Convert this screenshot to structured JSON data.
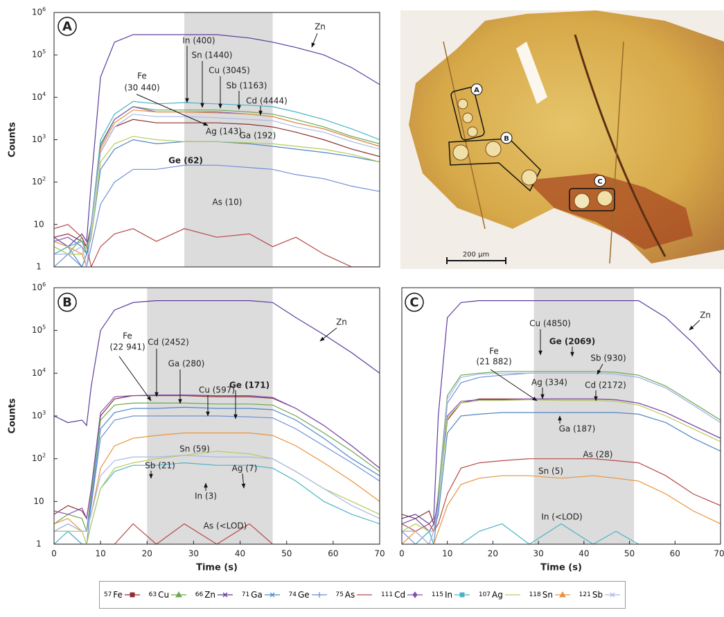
{
  "chart_data": [
    {
      "type": "line",
      "panel": "A",
      "log_y": true,
      "ylabel": "Counts",
      "x": [
        0,
        3,
        6,
        7,
        8,
        10,
        13,
        17,
        22,
        28,
        35,
        42,
        47,
        52,
        58,
        64,
        70
      ],
      "xlim": [
        0,
        70
      ],
      "ylim": [
        1,
        1000000
      ],
      "yticks": [
        1,
        10,
        {
          "value": 100,
          "label": "10",
          "sup": "2"
        },
        {
          "value": 1000,
          "label": "10",
          "sup": "3"
        },
        {
          "value": 10000,
          "label": "10",
          "sup": "4"
        },
        {
          "value": 100000,
          "label": "10",
          "sup": "5"
        },
        {
          "value": 1000000,
          "label": "10",
          "sup": "6"
        }
      ],
      "shade": [
        28,
        47
      ],
      "annotations": [
        {
          "text": "Zn"
        },
        {
          "text": "In (400)"
        },
        {
          "text": "Sn (1440)"
        },
        {
          "text": "Cu (3045)"
        },
        {
          "text": "Sb (1163)"
        },
        {
          "text": "Cd (4444)"
        },
        {
          "text": "Fe"
        },
        {
          "text": "(30 440)"
        },
        {
          "text": "Ag (143)"
        },
        {
          "text": "Ga (192)"
        },
        {
          "text": "Ge (62)",
          "bold": true
        },
        {
          "text": "As (10)"
        }
      ],
      "series": [
        {
          "color": "#8b2e2e",
          "values": [
            5,
            6,
            4,
            3,
            10,
            500,
            2000,
            3000,
            2500,
            2500,
            2500,
            2300,
            2000,
            1500,
            1000,
            600,
            400
          ]
        },
        {
          "color": "#6aa84f",
          "values": [
            3,
            2,
            5,
            2,
            10,
            800,
            3000,
            6000,
            5000,
            5000,
            5000,
            4500,
            4000,
            3000,
            2000,
            1200,
            800
          ]
        },
        {
          "color": "#5b3a9a",
          "values": [
            5,
            3,
            6,
            4,
            100,
            30000,
            200000,
            300000,
            300000,
            300000,
            300000,
            250000,
            200000,
            150000,
            100000,
            50000,
            20000
          ]
        },
        {
          "color": "#4f86c6",
          "values": [
            2,
            3,
            1,
            2,
            5,
            200,
            600,
            1000,
            800,
            900,
            900,
            800,
            700,
            600,
            500,
            400,
            300
          ]
        },
        {
          "color": "#6d8fd6",
          "values": [
            1,
            2,
            1,
            1,
            3,
            30,
            100,
            200,
            200,
            250,
            250,
            220,
            200,
            150,
            120,
            80,
            60
          ]
        },
        {
          "color": "#b5494a",
          "values": [
            8,
            10,
            5,
            3,
            1,
            3,
            6,
            8,
            4,
            8,
            5,
            6,
            3,
            5,
            2,
            1,
            1
          ]
        },
        {
          "color": "#8050b5",
          "values": [
            4,
            5,
            3,
            2,
            10,
            700,
            3000,
            6000,
            4500,
            4500,
            4500,
            4000,
            3500,
            2500,
            1800,
            1100,
            700
          ]
        },
        {
          "color": "#4ab3c7",
          "values": [
            2,
            3,
            4,
            2,
            10,
            1000,
            4000,
            8000,
            7000,
            7500,
            7000,
            6500,
            6000,
            4500,
            3000,
            1800,
            1000
          ]
        },
        {
          "color": "#b5cc5a",
          "values": [
            3,
            2,
            2,
            3,
            5,
            300,
            800,
            1200,
            1000,
            900,
            900,
            850,
            800,
            700,
            600,
            450,
            300
          ]
        },
        {
          "color": "#e8923a",
          "values": [
            4,
            3,
            2,
            1,
            8,
            600,
            2500,
            5000,
            4500,
            4500,
            4300,
            4000,
            3500,
            2500,
            1800,
            1100,
            700
          ]
        },
        {
          "color": "#a9b8e8",
          "values": [
            2,
            2,
            3,
            1,
            8,
            500,
            2000,
            4000,
            3500,
            3500,
            3300,
            3000,
            2800,
            2000,
            1500,
            900,
            600
          ]
        }
      ]
    },
    {
      "type": "line",
      "panel": "B",
      "log_y": true,
      "ylabel": "Counts",
      "xlabel": "Time (s)",
      "x": [
        0,
        3,
        6,
        7,
        8,
        10,
        13,
        17,
        22,
        28,
        35,
        42,
        47,
        52,
        58,
        64,
        70
      ],
      "xlim": [
        0,
        70
      ],
      "ylim": [
        1,
        1000000
      ],
      "xticks": [
        0,
        10,
        20,
        30,
        40,
        50,
        60,
        70
      ],
      "yticks": [
        1,
        10,
        {
          "value": 100,
          "label": "10",
          "sup": "2"
        },
        {
          "value": 1000,
          "label": "10",
          "sup": "3"
        },
        {
          "value": 10000,
          "label": "10",
          "sup": "4"
        },
        {
          "value": 100000,
          "label": "10",
          "sup": "5"
        },
        {
          "value": 1000000,
          "label": "10",
          "sup": "6"
        }
      ],
      "shade": [
        20,
        47
      ],
      "annotations": [
        {
          "text": "Zn"
        },
        {
          "text": "Fe"
        },
        {
          "text": "(22 941)"
        },
        {
          "text": "Cd (2452)"
        },
        {
          "text": "Ga (280)"
        },
        {
          "text": "Cu (597)"
        },
        {
          "text": "Ge (171)",
          "bold": true
        },
        {
          "text": "Sn (59)"
        },
        {
          "text": "Sb (21)"
        },
        {
          "text": "Ag (7)"
        },
        {
          "text": "In (3)"
        },
        {
          "text": "As (<LOD)"
        }
      ],
      "series": [
        {
          "color": "#8b2e2e",
          "values": [
            5,
            8,
            6,
            4,
            20,
            1000,
            2500,
            3000,
            3000,
            3000,
            2800,
            2800,
            2600,
            1500,
            600,
            200,
            60
          ]
        },
        {
          "color": "#6aa84f",
          "values": [
            3,
            5,
            4,
            2,
            15,
            800,
            1800,
            2000,
            2000,
            2000,
            1900,
            1900,
            1800,
            1000,
            400,
            150,
            50
          ]
        },
        {
          "color": "#5b3a9a",
          "values": [
            1000,
            700,
            800,
            600,
            5000,
            100000,
            300000,
            450000,
            500000,
            500000,
            500000,
            500000,
            450000,
            200000,
            80000,
            30000,
            10000
          ]
        },
        {
          "color": "#4f86c6",
          "values": [
            2,
            3,
            2,
            2,
            10,
            500,
            1200,
            1500,
            1500,
            1600,
            1500,
            1500,
            1400,
            800,
            300,
            100,
            40
          ]
        },
        {
          "color": "#6d8fd6",
          "values": [
            2,
            2,
            1,
            1,
            8,
            300,
            800,
            1000,
            1000,
            1000,
            1000,
            950,
            900,
            500,
            200,
            80,
            30
          ]
        },
        {
          "color": "#b5494a",
          "values": [
            1,
            1,
            1,
            1,
            1,
            1,
            1,
            3,
            1,
            3,
            1,
            3,
            1,
            1,
            1,
            1,
            1
          ]
        },
        {
          "color": "#8050b5",
          "values": [
            6,
            5,
            7,
            4,
            20,
            1200,
            2800,
            3000,
            3100,
            3100,
            3000,
            3000,
            2700,
            1500,
            600,
            200,
            60
          ]
        },
        {
          "color": "#4ab3c7",
          "values": [
            1,
            2,
            1,
            1,
            3,
            20,
            50,
            70,
            70,
            80,
            70,
            70,
            60,
            30,
            10,
            5,
            3
          ]
        },
        {
          "color": "#b5cc5a",
          "values": [
            2,
            2,
            2,
            1,
            3,
            20,
            60,
            80,
            100,
            120,
            150,
            130,
            100,
            50,
            20,
            10,
            5
          ]
        },
        {
          "color": "#e8923a",
          "values": [
            3,
            4,
            2,
            2,
            5,
            60,
            200,
            300,
            350,
            400,
            400,
            400,
            350,
            200,
            80,
            30,
            10
          ]
        },
        {
          "color": "#a9b8e8",
          "values": [
            2,
            3,
            2,
            2,
            5,
            40,
            90,
            110,
            110,
            120,
            110,
            110,
            100,
            50,
            20,
            8,
            4
          ]
        }
      ]
    },
    {
      "type": "line",
      "panel": "C",
      "log_y": true,
      "xlabel": "Time (s)",
      "x": [
        0,
        3,
        6,
        7,
        8,
        10,
        13,
        17,
        22,
        28,
        35,
        42,
        47,
        52,
        58,
        64,
        70
      ],
      "xlim": [
        0,
        70
      ],
      "ylim": [
        1,
        1000000
      ],
      "xticks": [
        0,
        10,
        20,
        30,
        40,
        50,
        60,
        70
      ],
      "shade": [
        29,
        51
      ],
      "annotations": [
        {
          "text": "Zn"
        },
        {
          "text": "Fe"
        },
        {
          "text": "(21 882)"
        },
        {
          "text": "Cu (4850)"
        },
        {
          "text": "Ge (2069)",
          "bold": true
        },
        {
          "text": "Sb (930)"
        },
        {
          "text": "Ag (334)"
        },
        {
          "text": "Cd (2172)"
        },
        {
          "text": "Ga (187)"
        },
        {
          "text": "As (28)"
        },
        {
          "text": "Sn (5)"
        },
        {
          "text": "In (<LOD)"
        }
      ],
      "series": [
        {
          "color": "#8b2e2e",
          "values": [
            5,
            4,
            6,
            3,
            10,
            800,
            2000,
            2500,
            2500,
            2500,
            2500,
            2500,
            2400,
            2000,
            1200,
            600,
            300
          ]
        },
        {
          "color": "#6aa84f",
          "values": [
            3,
            4,
            2,
            2,
            15,
            3000,
            9000,
            10000,
            11000,
            11000,
            11000,
            11000,
            10500,
            9000,
            5000,
            2000,
            800
          ]
        },
        {
          "color": "#5b3a9a",
          "values": [
            4,
            5,
            3,
            4,
            1000,
            200000,
            450000,
            500000,
            500000,
            500000,
            500000,
            500000,
            500000,
            500000,
            200000,
            50000,
            10000
          ]
        },
        {
          "color": "#4f86c6",
          "values": [
            2,
            2,
            1,
            2,
            5,
            400,
            1000,
            1100,
            1200,
            1200,
            1200,
            1200,
            1200,
            1100,
            700,
            300,
            150
          ]
        },
        {
          "color": "#6d8fd6",
          "values": [
            2,
            1,
            2,
            1,
            8,
            2000,
            6000,
            8000,
            9000,
            10000,
            10000,
            10000,
            9500,
            8000,
            4500,
            1800,
            700
          ]
        },
        {
          "color": "#b5494a",
          "values": [
            3,
            2,
            3,
            2,
            3,
            15,
            60,
            80,
            90,
            100,
            100,
            100,
            90,
            80,
            40,
            15,
            8
          ]
        },
        {
          "color": "#8050b5",
          "values": [
            3,
            4,
            2,
            3,
            10,
            1000,
            2200,
            2400,
            2400,
            2500,
            2500,
            2500,
            2400,
            2000,
            1200,
            600,
            300
          ]
        },
        {
          "color": "#4ab3c7",
          "values": [
            1,
            1,
            2,
            1,
            1,
            1,
            1,
            2,
            3,
            1,
            3,
            1,
            2,
            1,
            1,
            1,
            1
          ]
        },
        {
          "color": "#b5cc5a",
          "values": [
            2,
            3,
            2,
            2,
            8,
            900,
            2000,
            2300,
            2300,
            2400,
            2300,
            2300,
            2200,
            1800,
            1000,
            500,
            250
          ]
        },
        {
          "color": "#e8923a",
          "values": [
            1,
            2,
            1,
            1,
            2,
            8,
            25,
            35,
            40,
            40,
            35,
            40,
            35,
            30,
            15,
            6,
            3
          ]
        },
        {
          "color": "#a9b8e8",
          "values": [
            2,
            2,
            1,
            2,
            8,
            2500,
            8000,
            9500,
            10000,
            10000,
            10000,
            10000,
            9500,
            8000,
            4500,
            1800,
            700
          ]
        }
      ]
    }
  ],
  "legend": [
    {
      "mass": "57",
      "element": "Fe",
      "color": "#8b2e2e",
      "marker": "square"
    },
    {
      "mass": "63",
      "element": "Cu",
      "color": "#6aa84f",
      "marker": "triangle"
    },
    {
      "mass": "66",
      "element": "Zn",
      "color": "#5b3a9a",
      "marker": "x"
    },
    {
      "mass": "71",
      "element": "Ga",
      "color": "#4f86c6",
      "marker": "x"
    },
    {
      "mass": "74",
      "element": "Ge",
      "color": "#6d8fd6",
      "marker": "plus"
    },
    {
      "mass": "75",
      "element": "As",
      "color": "#b5494a",
      "marker": "line"
    },
    {
      "mass": "111",
      "element": "Cd",
      "color": "#8050b5",
      "marker": "diamond"
    },
    {
      "mass": "115",
      "element": "In",
      "color": "#4ab3c7",
      "marker": "square"
    },
    {
      "mass": "107",
      "element": "Ag",
      "color": "#b5cc5a",
      "marker": "line"
    },
    {
      "mass": "118",
      "element": "Sn",
      "color": "#e8923a",
      "marker": "triangle"
    },
    {
      "mass": "121",
      "element": "Sb",
      "color": "#a9b8e8",
      "marker": "x"
    }
  ],
  "photo": {
    "spots": [
      "A",
      "B",
      "C"
    ],
    "scale_bar": "200 µm"
  }
}
